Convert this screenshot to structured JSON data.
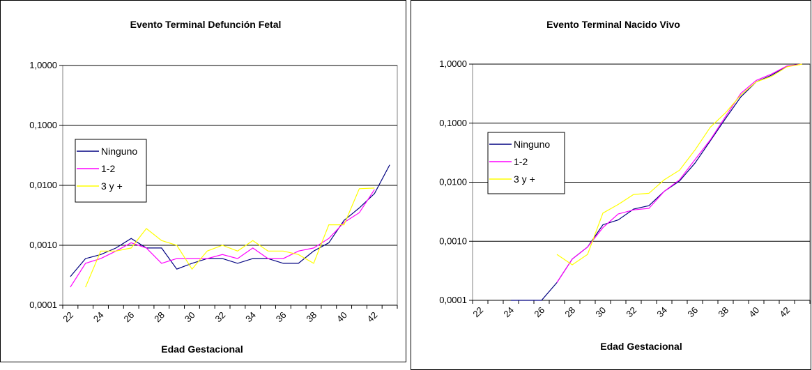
{
  "chart_data": [
    {
      "type": "line",
      "title": "Evento Terminal Defunción Fetal",
      "xlabel": "Edad Gestacional",
      "ylabel": "",
      "yscale": "log",
      "ylim": [
        0.0001,
        1
      ],
      "yticks": [
        {
          "v": 1,
          "label": "1,0000"
        },
        {
          "v": 0.1,
          "label": "0,1000"
        },
        {
          "v": 0.01,
          "label": "0,0100"
        },
        {
          "v": 0.001,
          "label": "0,0010"
        },
        {
          "v": 0.0001,
          "label": "0,0001"
        }
      ],
      "xlim": [
        22,
        43
      ],
      "xticks": [
        22,
        24,
        26,
        28,
        30,
        32,
        34,
        36,
        38,
        40,
        42
      ],
      "grid": "horizontal",
      "legend": "left",
      "series": [
        {
          "name": "Ninguno",
          "color": "#000080",
          "x": [
            22,
            23,
            24,
            25,
            26,
            27,
            28,
            29,
            30,
            31,
            32,
            33,
            34,
            35,
            36,
            37,
            38,
            39,
            40,
            41,
            42,
            43
          ],
          "y": [
            0.0003,
            0.0006,
            0.0007,
            0.0009,
            0.0013,
            0.0009,
            0.0009,
            0.0004,
            0.0005,
            0.0006,
            0.0006,
            0.0005,
            0.0006,
            0.0006,
            0.0005,
            0.0005,
            0.0008,
            0.0011,
            0.0026,
            0.0042,
            0.0073,
            0.022
          ]
        },
        {
          "name": "1-2",
          "color": "#ff00ff",
          "x": [
            22,
            23,
            24,
            25,
            26,
            27,
            28,
            29,
            30,
            31,
            32,
            33,
            34,
            35,
            36,
            37,
            38,
            39,
            40,
            41,
            42
          ],
          "y": [
            0.0002,
            0.0005,
            0.0006,
            0.0008,
            0.0011,
            0.0009,
            0.0005,
            0.0006,
            0.0006,
            0.0006,
            0.0007,
            0.0006,
            0.0009,
            0.0006,
            0.0006,
            0.0008,
            0.0009,
            0.0013,
            0.0024,
            0.0035,
            0.0085
          ]
        },
        {
          "name": "3 y +",
          "color": "#ffff00",
          "x": [
            23,
            24,
            25,
            26,
            27,
            28,
            29,
            30,
            31,
            32,
            33,
            34,
            35,
            36,
            37,
            38,
            39,
            40,
            41,
            42
          ],
          "y": [
            0.0002,
            0.0008,
            0.0008,
            0.0009,
            0.0019,
            0.0012,
            0.001,
            0.0004,
            0.0008,
            0.001,
            0.0008,
            0.0012,
            0.0008,
            0.0008,
            0.0007,
            0.0005,
            0.0022,
            0.0022,
            0.0088,
            0.009
          ]
        }
      ]
    },
    {
      "type": "line",
      "title": "Evento Terminal Nacido Vivo",
      "xlabel": "Edad Gestacional",
      "ylabel": "",
      "yscale": "log",
      "ylim": [
        0.0001,
        1
      ],
      "yticks": [
        {
          "v": 1,
          "label": "1,0000"
        },
        {
          "v": 0.1,
          "label": "0,1000"
        },
        {
          "v": 0.01,
          "label": "0,0100"
        },
        {
          "v": 0.001,
          "label": "0,0010"
        },
        {
          "v": 0.0001,
          "label": "0,0001"
        }
      ],
      "xlim": [
        22,
        43
      ],
      "xticks": [
        22,
        24,
        26,
        28,
        30,
        32,
        34,
        36,
        38,
        40,
        42
      ],
      "grid": "horizontal",
      "legend": "left",
      "series": [
        {
          "name": "Ninguno",
          "color": "#000080",
          "x": [
            24,
            25,
            26,
            27,
            28,
            29,
            30,
            31,
            32,
            33,
            34,
            35,
            36,
            37,
            38,
            39,
            40,
            41,
            42,
            43
          ],
          "y": [
            0.0001,
            0.0001,
            0.0001,
            0.0002,
            0.0005,
            0.0008,
            0.0019,
            0.0023,
            0.0035,
            0.004,
            0.007,
            0.0105,
            0.021,
            0.05,
            0.12,
            0.28,
            0.5,
            0.65,
            0.92,
            1.0
          ]
        },
        {
          "name": "1-2",
          "color": "#ff00ff",
          "x": [
            27,
            28,
            29,
            30,
            31,
            32,
            33,
            34,
            35,
            36,
            37,
            38,
            39,
            40,
            41,
            42,
            43
          ],
          "y": [
            0.0002,
            0.0005,
            0.0008,
            0.0017,
            0.0029,
            0.0034,
            0.0036,
            0.007,
            0.011,
            0.024,
            0.052,
            0.13,
            0.32,
            0.53,
            0.68,
            0.93,
            1.0
          ]
        },
        {
          "name": "3 y +",
          "color": "#ffff00",
          "x": [
            27,
            28,
            29,
            30,
            31,
            32,
            33,
            34,
            35,
            36,
            37,
            38,
            39,
            40,
            41,
            42,
            43
          ],
          "y": [
            0.0006,
            0.0004,
            0.0006,
            0.003,
            0.0042,
            0.0062,
            0.0065,
            0.011,
            0.016,
            0.035,
            0.085,
            0.15,
            0.3,
            0.5,
            0.62,
            0.9,
            1.0
          ]
        }
      ]
    }
  ]
}
